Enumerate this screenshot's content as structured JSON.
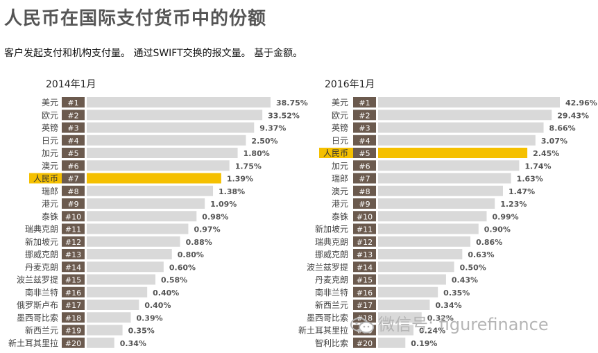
{
  "title": "人民币在国际支付货币中的份额",
  "subtitle": "客户发起支付和机构支付量。 通过SWIFT交换的报文量。 基于金额。",
  "watermark": "微信号: figurefinance",
  "colors": {
    "bar": "#d9d9d9",
    "highlight": "#f5c000",
    "rank_box": "#6b5a4e",
    "text": "#444444"
  },
  "chart_data": [
    {
      "type": "bar",
      "title": "2014年1月",
      "highlight": "人民币",
      "categories": [
        "美元",
        "欧元",
        "英镑",
        "日元",
        "加元",
        "澳元",
        "人民币",
        "瑞郎",
        "港元",
        "泰铢",
        "瑞典克朗",
        "新加坡元",
        "挪威克朗",
        "丹麦克朗",
        "波兰兹罗提",
        "南非兰特",
        "俄罗斯卢布",
        "墨西哥比索",
        "新西兰元",
        "新土耳其里拉"
      ],
      "ranks": [
        "#1",
        "#2",
        "#3",
        "#4",
        "#5",
        "#6",
        "#7",
        "#8",
        "#9",
        "#10",
        "#11",
        "#12",
        "#13",
        "#14",
        "#15",
        "#16",
        "#17",
        "#18",
        "#19",
        "#20"
      ],
      "values": [
        38.75,
        33.52,
        9.37,
        2.5,
        1.8,
        1.75,
        1.39,
        1.38,
        1.09,
        0.98,
        0.97,
        0.88,
        0.8,
        0.6,
        0.58,
        0.4,
        0.4,
        0.39,
        0.35,
        0.34
      ],
      "labels": [
        "38.75%",
        "33.52%",
        "9.37%",
        "2.50%",
        "1.80%",
        "1.75%",
        "1.39%",
        "1.38%",
        "1.09%",
        "0.98%",
        "0.97%",
        "0.88%",
        "0.80%",
        "0.60%",
        "0.58%",
        "0.40%",
        "0.40%",
        "0.39%",
        "0.35%",
        "0.34%"
      ]
    },
    {
      "type": "bar",
      "title": "2016年1月",
      "highlight": "人民币",
      "categories": [
        "美元",
        "欧元",
        "英镑",
        "日元",
        "人民币",
        "加元",
        "瑞郎",
        "澳元",
        "港元",
        "泰铢",
        "新加坡元",
        "瑞典克朗",
        "挪威克朗",
        "波兰兹罗提",
        "丹麦克朗",
        "南非兰特",
        "新西兰元",
        "墨西哥比索",
        "新土耳其里拉",
        "智利比索"
      ],
      "ranks": [
        "#1",
        "#2",
        "#3",
        "#4",
        "#5",
        "#6",
        "#7",
        "#8",
        "#9",
        "#10",
        "#11",
        "#12",
        "#13",
        "#14",
        "#15",
        "#16",
        "#17",
        "#18",
        "#19",
        "#20"
      ],
      "values": [
        42.96,
        29.43,
        8.66,
        3.07,
        2.45,
        1.74,
        1.63,
        1.47,
        1.23,
        0.99,
        0.9,
        0.86,
        0.63,
        0.5,
        0.43,
        0.35,
        0.34,
        0.32,
        0.24,
        0.19
      ],
      "labels": [
        "42.96%",
        "29.43%",
        "8.66%",
        "3.07%",
        "2.45%",
        "1.74%",
        "1.63%",
        "1.47%",
        "1.23%",
        "0.99%",
        "0.90%",
        "0.86%",
        "0.63%",
        "0.50%",
        "0.43%",
        "0.35%",
        "0.34%",
        "0.32%",
        "0.24%",
        "0.19%"
      ]
    }
  ]
}
